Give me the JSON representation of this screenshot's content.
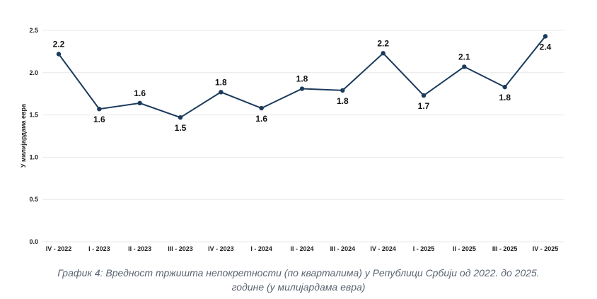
{
  "chart_data": {
    "type": "line",
    "categories": [
      "IV - 2022",
      "I - 2023",
      "II - 2023",
      "III - 2023",
      "IV - 2023",
      "I - 2024",
      "II - 2024",
      "III - 2024",
      "IV - 2024",
      "I - 2025",
      "II - 2025",
      "III - 2025",
      "IV - 2025"
    ],
    "series": [
      {
        "values": [
          2.22,
          1.57,
          1.64,
          1.47,
          1.77,
          1.58,
          1.81,
          1.79,
          2.23,
          1.73,
          2.07,
          1.83,
          2.43
        ],
        "labels": [
          "2.2",
          "1.6",
          "1.6",
          "1.5",
          "1.8",
          "1.6",
          "1.8",
          "1.8",
          "2.2",
          "1.7",
          "2.1",
          "1.8",
          "2.4"
        ],
        "label_position": [
          "above",
          "below",
          "above",
          "below",
          "above",
          "below",
          "above",
          "below",
          "above",
          "below",
          "above",
          "below",
          "below"
        ]
      }
    ],
    "ylabel": "У милијардама евра",
    "ylim": [
      0,
      2.5
    ],
    "yticks": [
      "0.0",
      "0.5",
      "1.0",
      "1.5",
      "2.0",
      "2.5"
    ],
    "grid": true,
    "line_color": "#1b3a5c",
    "grid_color": "#e8e8e8"
  },
  "caption": {
    "line1": "График 4: Вредност тржишта непокретности (по кварталима) у Републици Србији од 2022. до 2025.",
    "line2": "године (у милијардама евра)"
  }
}
